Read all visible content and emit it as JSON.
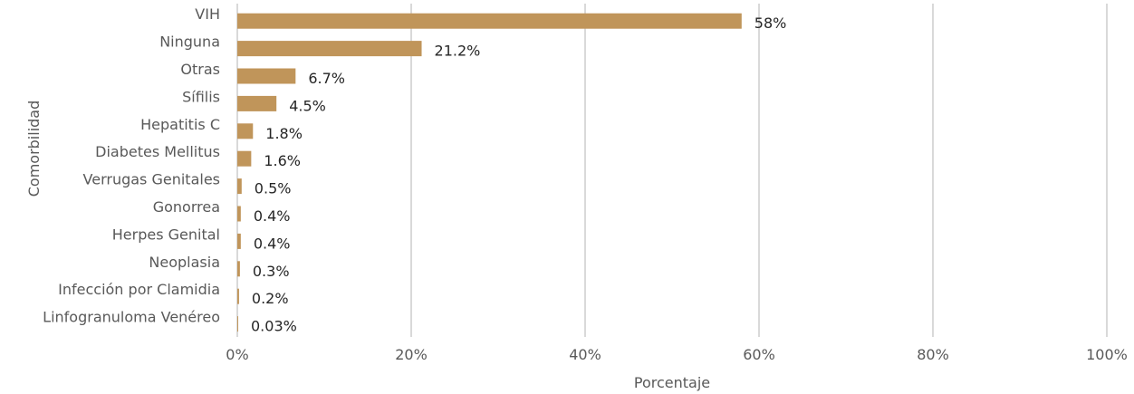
{
  "chart_data": {
    "type": "bar",
    "orientation": "horizontal",
    "categories": [
      "VIH",
      "Ninguna",
      "Otras",
      "Sífilis",
      "Hepatitis C",
      "Diabetes Mellitus",
      "Verrugas Genitales",
      "Gonorrea",
      "Herpes Genital",
      "Neoplasia",
      "Infección por Clamidia",
      "Linfogranuloma Venéreo"
    ],
    "values": [
      58,
      21.2,
      6.7,
      4.5,
      1.8,
      1.6,
      0.5,
      0.4,
      0.4,
      0.3,
      0.2,
      0.03
    ],
    "data_labels": [
      "58%",
      "21.2%",
      "6.7%",
      "4.5%",
      "1.8%",
      "1.6%",
      "0.5%",
      "0.4%",
      "0.4%",
      "0.3%",
      "0.2%",
      "0.03%"
    ],
    "xlabel": "Porcentaje",
    "ylabel": "Comorbilidad",
    "xlim": [
      0,
      100
    ],
    "x_ticks": [
      0,
      20,
      40,
      60,
      80,
      100
    ],
    "x_tick_labels": [
      "0%",
      "20%",
      "40%",
      "60%",
      "80%",
      "100%"
    ],
    "grid": "vertical",
    "legend": "none",
    "bar_color": "#C0955A",
    "grid_color": "#D9D9D9"
  }
}
